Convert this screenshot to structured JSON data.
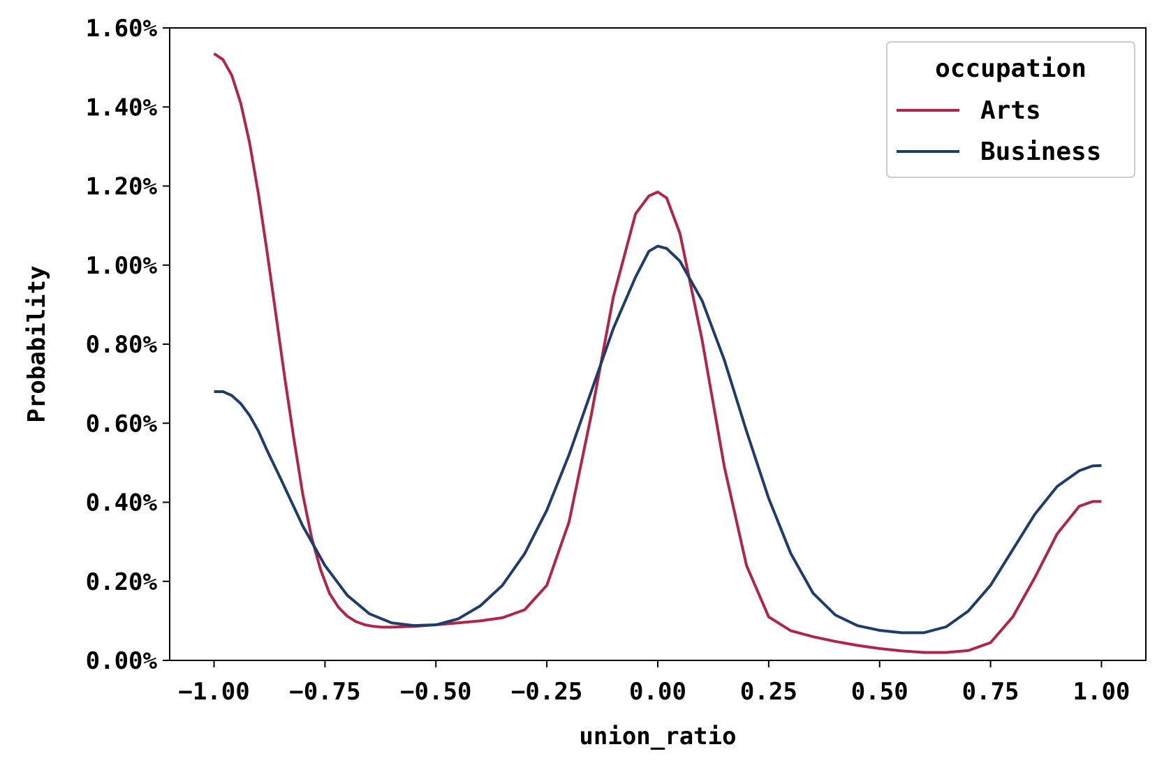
{
  "chart_data": {
    "type": "line",
    "title": "",
    "xlabel": "union_ratio",
    "ylabel": "Probability",
    "xlim": [
      -1.1,
      1.1
    ],
    "ylim": [
      0,
      0.016
    ],
    "xticks": [
      -1.0,
      -0.75,
      -0.5,
      -0.25,
      0.0,
      0.25,
      0.5,
      0.75,
      1.0
    ],
    "xtick_labels": [
      "−1.00",
      "−0.75",
      "−0.50",
      "−0.25",
      "0.00",
      "0.25",
      "0.50",
      "0.75",
      "1.00"
    ],
    "yticks": [
      0,
      0.002,
      0.004,
      0.006,
      0.008,
      0.01,
      0.012,
      0.014,
      0.016
    ],
    "ytick_labels": [
      "0.00%",
      "0.20%",
      "0.40%",
      "0.60%",
      "0.80%",
      "1.00%",
      "1.20%",
      "1.40%",
      "1.60%"
    ],
    "grid": false,
    "legend": {
      "title": "occupation",
      "placement": "top-right"
    },
    "series": [
      {
        "name": "Arts",
        "color": "#b0254a",
        "x": [
          -1.0,
          -0.98,
          -0.96,
          -0.94,
          -0.92,
          -0.9,
          -0.88,
          -0.86,
          -0.84,
          -0.82,
          -0.8,
          -0.78,
          -0.76,
          -0.74,
          -0.72,
          -0.7,
          -0.68,
          -0.66,
          -0.64,
          -0.62,
          -0.6,
          -0.55,
          -0.5,
          -0.45,
          -0.4,
          -0.35,
          -0.3,
          -0.25,
          -0.2,
          -0.15,
          -0.1,
          -0.05,
          -0.02,
          0.0,
          0.02,
          0.05,
          0.1,
          0.15,
          0.2,
          0.25,
          0.3,
          0.35,
          0.4,
          0.45,
          0.5,
          0.55,
          0.6,
          0.65,
          0.7,
          0.75,
          0.8,
          0.85,
          0.9,
          0.95,
          0.98,
          1.0
        ],
        "values": [
          0.01535,
          0.0152,
          0.0148,
          0.0141,
          0.0131,
          0.0118,
          0.0103,
          0.0087,
          0.0071,
          0.0056,
          0.0042,
          0.0031,
          0.0023,
          0.0017,
          0.00135,
          0.00112,
          0.00098,
          0.0009,
          0.00086,
          0.00084,
          0.00084,
          0.00086,
          0.0009,
          0.00095,
          0.001,
          0.00108,
          0.00128,
          0.0019,
          0.0035,
          0.0062,
          0.0092,
          0.0113,
          0.01175,
          0.01185,
          0.0117,
          0.0108,
          0.0081,
          0.0049,
          0.0024,
          0.0011,
          0.00075,
          0.0006,
          0.00048,
          0.00038,
          0.0003,
          0.00024,
          0.0002,
          0.0002,
          0.00025,
          0.00045,
          0.0011,
          0.0021,
          0.0032,
          0.0039,
          0.00402,
          0.00402
        ]
      },
      {
        "name": "Business",
        "color": "#1f3c6b",
        "x": [
          -1.0,
          -0.98,
          -0.96,
          -0.94,
          -0.92,
          -0.9,
          -0.88,
          -0.85,
          -0.8,
          -0.75,
          -0.7,
          -0.65,
          -0.6,
          -0.55,
          -0.5,
          -0.45,
          -0.4,
          -0.35,
          -0.3,
          -0.25,
          -0.2,
          -0.15,
          -0.1,
          -0.05,
          -0.02,
          0.0,
          0.02,
          0.05,
          0.1,
          0.15,
          0.2,
          0.25,
          0.3,
          0.35,
          0.4,
          0.45,
          0.5,
          0.55,
          0.6,
          0.65,
          0.7,
          0.75,
          0.8,
          0.85,
          0.9,
          0.95,
          0.98,
          1.0
        ],
        "values": [
          0.0068,
          0.0068,
          0.0067,
          0.0065,
          0.0062,
          0.0058,
          0.0053,
          0.0046,
          0.0034,
          0.0024,
          0.00165,
          0.00118,
          0.00095,
          0.00088,
          0.0009,
          0.00105,
          0.00138,
          0.0019,
          0.0027,
          0.0038,
          0.0052,
          0.0068,
          0.0084,
          0.0097,
          0.01035,
          0.01048,
          0.01042,
          0.0101,
          0.0091,
          0.0076,
          0.0058,
          0.0041,
          0.0027,
          0.0017,
          0.00115,
          0.00088,
          0.00076,
          0.0007,
          0.0007,
          0.00085,
          0.00125,
          0.0019,
          0.0028,
          0.0037,
          0.0044,
          0.0048,
          0.00492,
          0.00493
        ]
      }
    ]
  }
}
